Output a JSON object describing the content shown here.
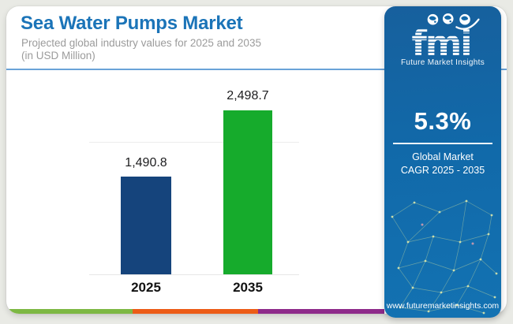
{
  "page": {
    "background": "#e9eae5"
  },
  "header": {
    "title": "Sea Water Pumps Market",
    "subtitle_line1": "Projected global industry values for 2025 and 2035",
    "subtitle_line2": "(in USD Million)",
    "title_color": "#1b74b8",
    "separator_color": "#6aa3d8"
  },
  "chart_data": {
    "type": "bar",
    "title": "Sea Water Pumps Market",
    "subtitle": "Projected global industry values for 2025 and 2035 (in USD Million)",
    "unit": "USD Million",
    "categories": [
      "2025",
      "2035"
    ],
    "values": [
      1490.8,
      2498.7
    ],
    "value_labels": [
      "1,490.8",
      "2,498.7"
    ],
    "bar_colors": [
      "#15447c",
      "#16ab2c"
    ],
    "ylim": [
      0,
      2600
    ],
    "grid": false,
    "legend": false
  },
  "sidebar": {
    "background": "#1268a8",
    "logo_text": "fmi",
    "logo_tagline": "Future Market Insights",
    "cagr_value": "5.3%",
    "cagr_label_line1": "Global Market",
    "cagr_label_line2": "CAGR 2025 - 2035",
    "website": "www.futuremarketinsights.com"
  },
  "footer_strip_colors": [
    "#7db843",
    "#ec5c17",
    "#8e2a8a"
  ]
}
